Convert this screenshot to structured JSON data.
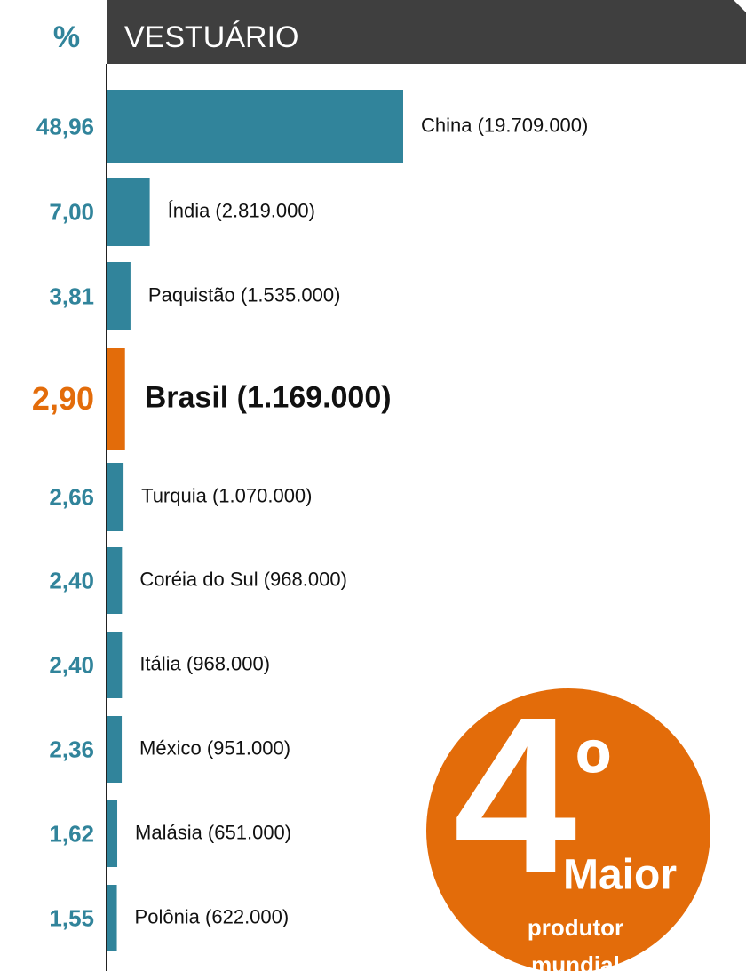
{
  "chart_data": {
    "type": "bar",
    "orientation": "horizontal",
    "axis_title": "%",
    "title": "VESTUÁRIO",
    "categories": [
      "China (19.709.000)",
      "Índia (2.819.000)",
      "Paquistão (1.535.000)",
      "Brasil (1.169.000)",
      "Turquia (1.070.000)",
      "Coréia do Sul (968.000)",
      "Itália (968.000)",
      "México (951.000)",
      "Malásia (651.000)",
      "Polônia (622.000)"
    ],
    "values": [
      48.96,
      7.0,
      3.81,
      2.9,
      2.66,
      2.4,
      2.4,
      2.36,
      1.62,
      1.55
    ],
    "value_labels": [
      "48,96",
      "7,00",
      "3,81",
      "2,90",
      "2,66",
      "2,40",
      "2,40",
      "2,36",
      "1,62",
      "1,55"
    ],
    "colors": [
      "#31849b",
      "#31849b",
      "#31849b",
      "#e36c0a",
      "#31849b",
      "#31849b",
      "#31849b",
      "#31849b",
      "#31849b",
      "#31849b"
    ],
    "badge": {
      "rank": "4",
      "ordinal": "º",
      "line1": "Maior",
      "line2": "produtor",
      "line3": "mundial",
      "color": "#e36c0a"
    }
  }
}
